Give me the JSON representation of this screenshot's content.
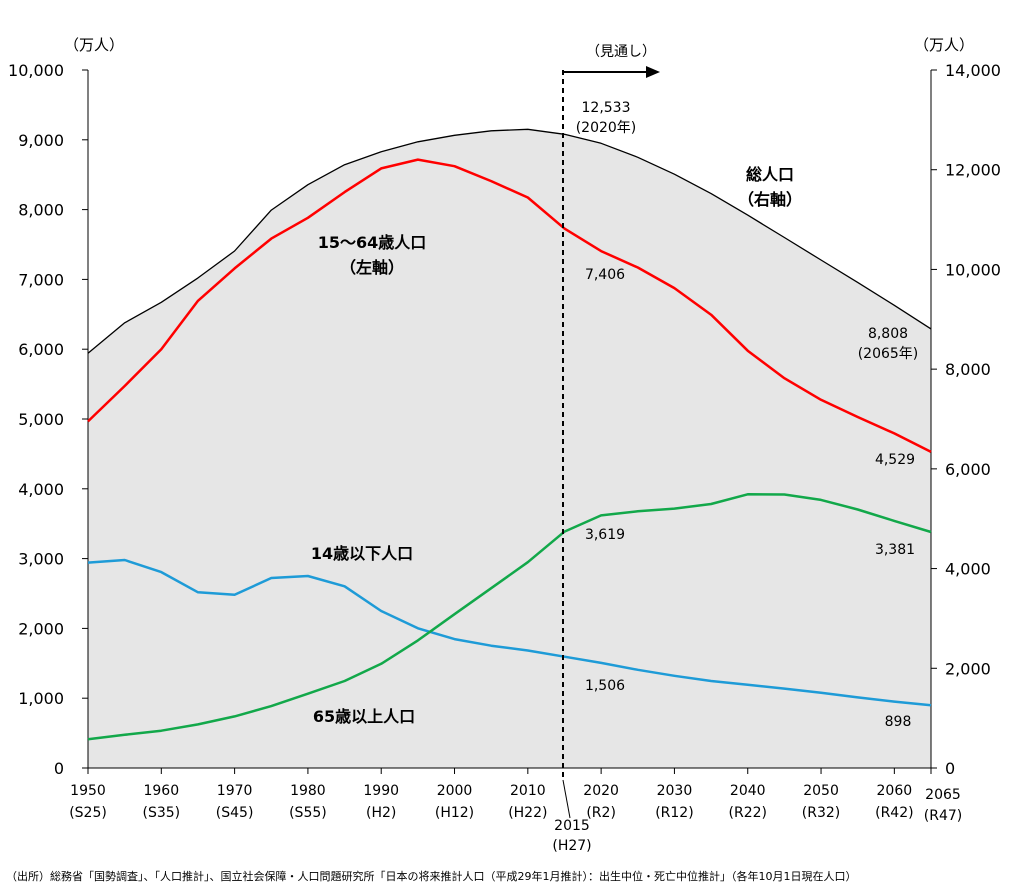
{
  "chart_data": {
    "type": "line",
    "left_unit": "（万人）",
    "right_unit": "（万人）",
    "left_ylim": [
      0,
      10000
    ],
    "left_ticks": [
      "0",
      "1,000",
      "2,000",
      "3,000",
      "4,000",
      "5,000",
      "6,000",
      "7,000",
      "8,000",
      "9,000",
      "10,000"
    ],
    "right_ylim": [
      0,
      14000
    ],
    "right_ticks": [
      "0",
      "2,000",
      "4,000",
      "6,000",
      "8,000",
      "10,000",
      "12,000",
      "14,000"
    ],
    "x_ticks": [
      {
        "year": 1950,
        "top": "1950",
        "bottom": "(S25)"
      },
      {
        "year": 1960,
        "top": "1960",
        "bottom": "(S35)"
      },
      {
        "year": 1970,
        "top": "1970",
        "bottom": "(S45)"
      },
      {
        "year": 1980,
        "top": "1980",
        "bottom": "(S55)"
      },
      {
        "year": 1990,
        "top": "1990",
        "bottom": "(H2)"
      },
      {
        "year": 2000,
        "top": "2000",
        "bottom": "(H12)"
      },
      {
        "year": 2010,
        "top": "2010",
        "bottom": "(H22)"
      },
      {
        "year": 2020,
        "top": "2020",
        "bottom": "(R2)"
      },
      {
        "year": 2030,
        "top": "2030",
        "bottom": "(R12)"
      },
      {
        "year": 2040,
        "top": "2040",
        "bottom": "(R22)"
      },
      {
        "year": 2050,
        "top": "2050",
        "bottom": "(R32)"
      },
      {
        "year": 2060,
        "top": "2060",
        "bottom": "(R42)"
      },
      {
        "year": 2065,
        "top": "2065",
        "bottom": "(R47)"
      }
    ],
    "projection_year": 2015,
    "projection_label_top": "2015",
    "projection_label_bottom": "(H27)",
    "projection_text": "（見通し）",
    "years": [
      1950,
      1955,
      1960,
      1965,
      1970,
      1975,
      1980,
      1985,
      1990,
      1995,
      2000,
      2005,
      2010,
      2015,
      2020,
      2025,
      2030,
      2035,
      2040,
      2045,
      2050,
      2055,
      2060,
      2065
    ],
    "series": [
      {
        "name": "総人口",
        "name_line1": "総人口",
        "name_line2": "（右軸）",
        "axis": "right",
        "color": "#000000",
        "values": [
          8320,
          8930,
          9340,
          9830,
          10370,
          11190,
          11700,
          12100,
          12360,
          12560,
          12690,
          12780,
          12810,
          12710,
          12530,
          12250,
          11910,
          11520,
          11090,
          10640,
          10190,
          9740,
          9280,
          8808
        ]
      },
      {
        "name": "15～64歳人口",
        "name_line1": "15～64歳人口",
        "name_line2": "（左軸）",
        "axis": "left",
        "color": "#ff0000",
        "values": [
          4966,
          5473,
          6000,
          6693,
          7157,
          7584,
          7883,
          8251,
          8590,
          8716,
          8622,
          8409,
          8173,
          7728,
          7406,
          7170,
          6875,
          6494,
          5978,
          5584,
          5275,
          5028,
          4793,
          4529
        ]
      },
      {
        "name": "14歳以下人口",
        "name_line1": "14歳以下人口",
        "axis": "left",
        "color": "#1e9bd7",
        "values": [
          2943,
          2980,
          2807,
          2517,
          2482,
          2722,
          2751,
          2603,
          2249,
          2001,
          1847,
          1752,
          1684,
          1595,
          1506,
          1407,
          1321,
          1246,
          1194,
          1138,
          1077,
          1012,
          951,
          898
        ]
      },
      {
        "name": "65歳以上人口",
        "name_line1": "65歳以上人口",
        "axis": "left",
        "color": "#12a84a",
        "values": [
          411,
          475,
          535,
          624,
          739,
          887,
          1065,
          1247,
          1493,
          1828,
          2204,
          2576,
          2948,
          3387,
          3619,
          3677,
          3716,
          3782,
          3921,
          3919,
          3841,
          3704,
          3540,
          3381
        ]
      }
    ],
    "data_labels": [
      {
        "text": "12,533",
        "text2": "(2020年)",
        "series": "総人口"
      },
      {
        "text": "8,808",
        "text2": "(2065年)",
        "series": "総人口"
      },
      {
        "text": "7,406",
        "series": "15～64歳人口"
      },
      {
        "text": "4,529",
        "series": "15～64歳人口"
      },
      {
        "text": "3,619",
        "series": "65歳以上人口"
      },
      {
        "text": "3,381",
        "series": "65歳以上人口"
      },
      {
        "text": "1,506",
        "series": "14歳以下人口"
      },
      {
        "text": "898",
        "series": "14歳以下人口"
      }
    ],
    "source": "（出所）総務省「国勢調査」、「人口推計」、国立社会保障・人口問題研究所「日本の将来推計人口（平成29年1月推計）：出生中位・死亡中位推計」（各年10月1日現在人口）"
  }
}
